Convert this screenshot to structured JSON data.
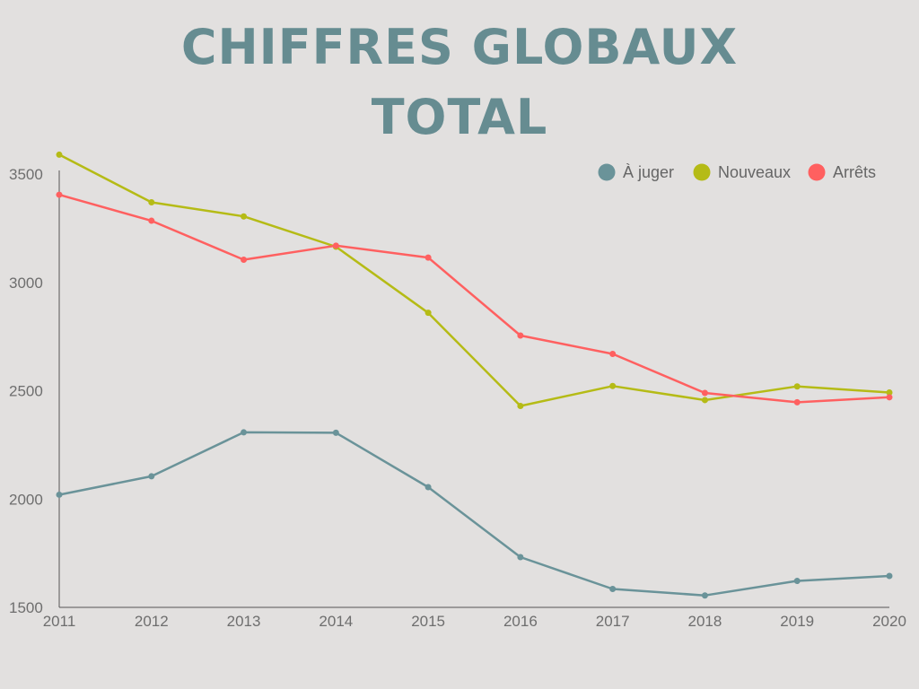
{
  "title": {
    "line1": "CHIFFRES GLOBAUX",
    "line2": "TOTAL"
  },
  "chart_data": {
    "type": "line",
    "title": "CHIFFRES GLOBAUX TOTAL",
    "xlabel": "",
    "ylabel": "",
    "x": [
      "2011",
      "2012",
      "2013",
      "2014",
      "2015",
      "2016",
      "2017",
      "2018",
      "2019",
      "2020"
    ],
    "ylim": [
      1500,
      3600
    ],
    "yticks": [
      1500,
      2000,
      2500,
      3000,
      3500
    ],
    "grid": false,
    "legend_position": "top-right",
    "series": [
      {
        "name": "À juger",
        "color": "#6a9399",
        "values": [
          2020,
          2105,
          2308,
          2306,
          2055,
          1732,
          1585,
          1555,
          1622,
          1645
        ]
      },
      {
        "name": "Nouveaux",
        "color": "#b5bb16",
        "values": [
          3590,
          3370,
          3305,
          3165,
          2860,
          2430,
          2522,
          2457,
          2520,
          2492
        ]
      },
      {
        "name": "Arrêts",
        "color": "#ff6060",
        "values": [
          3405,
          3285,
          3105,
          3170,
          3115,
          2755,
          2670,
          2490,
          2447,
          2470
        ]
      }
    ]
  }
}
